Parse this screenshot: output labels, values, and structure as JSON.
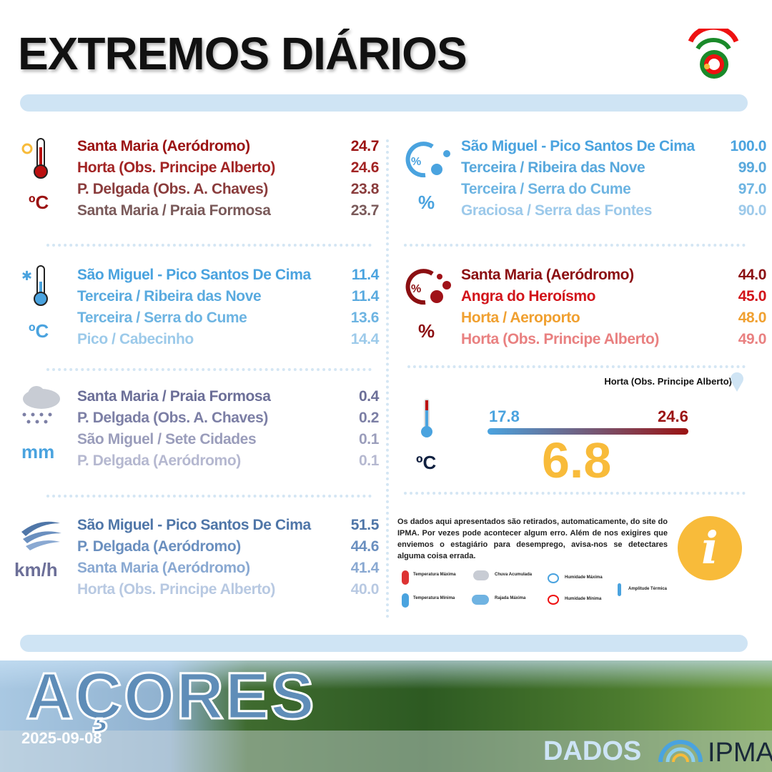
{
  "header": {
    "title": "EXTREMOS DIÁRIOS"
  },
  "tmax": {
    "unit": "ºC",
    "icon": "thermometer-hot-icon",
    "rows": [
      {
        "name": "Santa Maria (Aeródromo)",
        "value": "24.7",
        "color": "#9b1313"
      },
      {
        "name": "Horta (Obs. Principe Alberto)",
        "value": "24.6",
        "color": "#a22424"
      },
      {
        "name": "P. Delgada (Obs. A. Chaves)",
        "value": "23.8",
        "color": "#8a3c3c"
      },
      {
        "name": "Santa Maria / Praia Formosa",
        "value": "23.7",
        "color": "#7a5a5a"
      }
    ]
  },
  "tmin": {
    "unit": "ºC",
    "icon": "thermometer-cold-icon",
    "rows": [
      {
        "name": "São Miguel - Pico Santos De Cima",
        "value": "11.4",
        "color": "#4aa3df"
      },
      {
        "name": "Terceira / Ribeira das Nove",
        "value": "11.4",
        "color": "#59aadf"
      },
      {
        "name": "Terceira / Serra do Cume",
        "value": "13.6",
        "color": "#6db4e2"
      },
      {
        "name": "Pico / Cabecinho",
        "value": "14.4",
        "color": "#9ccaea"
      }
    ]
  },
  "rain": {
    "unit": "mm",
    "icon": "rain-cloud-icon",
    "rows": [
      {
        "name": "Santa Maria / Praia Formosa",
        "value": "0.4",
        "color": "#6c6f98"
      },
      {
        "name": "P. Delgada (Obs. A. Chaves)",
        "value": "0.2",
        "color": "#7c7fa5"
      },
      {
        "name": "São Miguel / Sete Cidades",
        "value": "0.1",
        "color": "#9a9dbb"
      },
      {
        "name": "P. Delgada (Aeródromo)",
        "value": "0.1",
        "color": "#b5b8d0"
      }
    ]
  },
  "wind": {
    "unit": "km/h",
    "icon": "wind-icon",
    "rows": [
      {
        "name": "São Miguel - Pico Santos De Cima",
        "value": "51.5",
        "color": "#4f76a8"
      },
      {
        "name": "P. Delgada (Aeródromo)",
        "value": "44.6",
        "color": "#6a8fbf"
      },
      {
        "name": "Santa Maria (Aeródromo)",
        "value": "41.4",
        "color": "#8aa9d2"
      },
      {
        "name": "Horta (Obs. Principe Alberto)",
        "value": "40.0",
        "color": "#b8c9e2"
      }
    ]
  },
  "hmax": {
    "unit": "%",
    "icon": "humidity-max-icon",
    "rows": [
      {
        "name": "São Miguel - Pico Santos De Cima",
        "value": "100.0",
        "color": "#4aa3df"
      },
      {
        "name": "Terceira / Ribeira das Nove",
        "value": "99.0",
        "color": "#58a8dc"
      },
      {
        "name": "Terceira / Serra do Cume",
        "value": "97.0",
        "color": "#6db4e2"
      },
      {
        "name": "Graciosa / Serra das Fontes",
        "value": "90.0",
        "color": "#9cc9ea"
      }
    ]
  },
  "hmin": {
    "unit": "%",
    "icon": "humidity-min-icon",
    "rows": [
      {
        "name": "Santa Maria (Aeródromo)",
        "value": "44.0",
        "color": "#8b0f12"
      },
      {
        "name": "Angra do Heroísmo",
        "value": "45.0",
        "color": "#d2141a"
      },
      {
        "name": "Horta / Aeroporto",
        "value": "48.0",
        "color": "#f0a030"
      },
      {
        "name": "Horta (Obs. Principe Alberto)",
        "value": "49.0",
        "color": "#e98080"
      }
    ]
  },
  "amplitude": {
    "station": "Horta (Obs. Principe Alberto)",
    "min": "17.8",
    "max": "24.6",
    "value": "6.8",
    "unit": "ºC",
    "colors": {
      "min": "#4aa3df",
      "max": "#9b1313",
      "value": "#f8bb3a"
    }
  },
  "note": "Os dados aqui apresentados são retirados, automaticamente,  do site do IPMA. Por vezes pode acontecer algum erro. Além de nos exigires que enviemos o estagiário para desemprego, avisa-nos se detectares alguma coisa errada.",
  "legend": {
    "tmax": "Temperatura Máxima",
    "tmin": "Temperatura Mínima",
    "rain": "Chuva Acumulada",
    "wind": "Rajada Máxima",
    "hmax": "Humidade Máxima",
    "hmin": "Humidade Mínima",
    "amp": "Amplitude Térmica"
  },
  "footer": {
    "region": "AÇORES",
    "date": "2025-09-08",
    "dados": "DADOS",
    "ipma": "IPMA"
  }
}
